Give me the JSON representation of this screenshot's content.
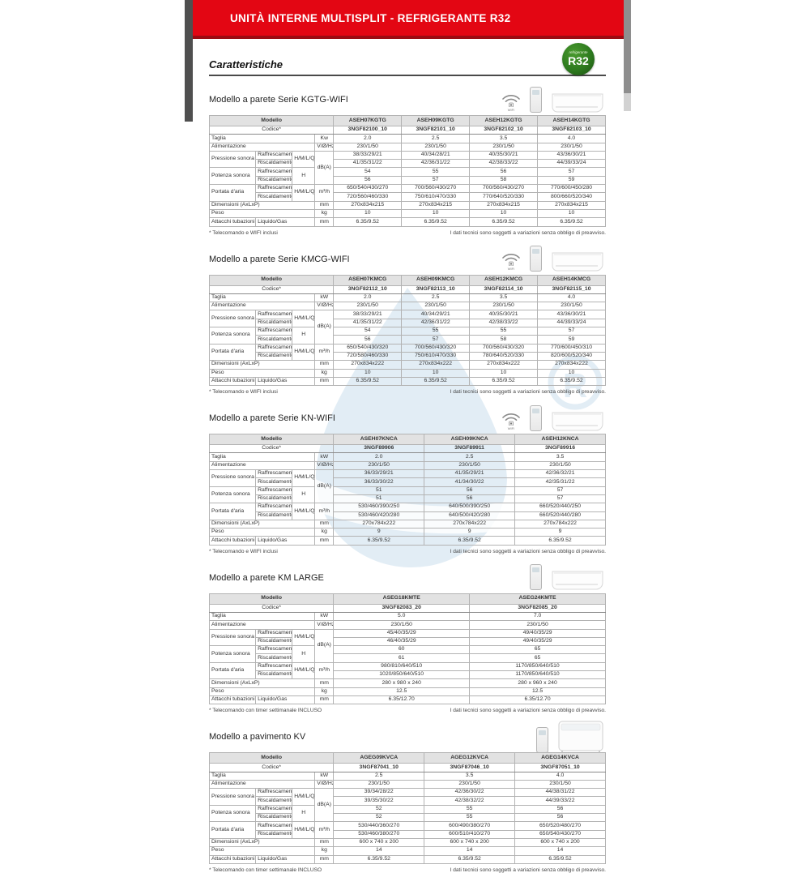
{
  "banner": {
    "title": "UNITÀ INTERNE MULTISPLIT - REFRIGERANTE R32"
  },
  "badge": {
    "small": "refrigerante",
    "big": "R32"
  },
  "page_heading": "Caratteristiche",
  "footnote_right": "I dati tecnici sono soggetti a variazioni senza obbligo di preavviso.",
  "colors": {
    "accent_red": "#e30613",
    "model_red": "#cf0a1e",
    "badge_green": "#2d7a1e"
  },
  "row_labels": {
    "modello": "Modello",
    "codice": "Codice*",
    "taglia": "Taglia",
    "alimentazione": "Alimentazione",
    "alimentazione_unit": "V/Ø/Hz",
    "pressione": "Pressione sonora",
    "potenza": "Potenza sonora",
    "portata": "Portata d'aria",
    "raffrescamento": "Raffrescamento",
    "riscaldamento": "Riscaldamento",
    "hmlq": "H/M/L/Q",
    "h": "H",
    "dba": "dB(A)",
    "m3h": "m³/h",
    "dimensioni": "Dimensioni (AxLxP)",
    "peso": "Peso",
    "attacchi": "Attacchi tubazioni",
    "liquido_gas": "Liquido/Gas",
    "mm": "mm",
    "kg": "kg"
  },
  "sections": [
    {
      "title": "Modello a parete Serie KGTG-WIFI",
      "icons": [
        "wifi",
        "remote",
        "wall-unit"
      ],
      "taglia_unit": "Kw",
      "models": [
        "ASEH07KGTG",
        "ASEH09KGTG",
        "ASEH12KGTG",
        "ASEH14KGTG"
      ],
      "codes": [
        "3NGF82100_10",
        "3NGF82101_10",
        "3NGF82102_10",
        "3NGF82103_10"
      ],
      "taglia": [
        "2.0",
        "2.5",
        "3.5",
        "4.0"
      ],
      "alimentazione": [
        "230/1/50",
        "230/1/50",
        "230/1/50",
        "230/1/50"
      ],
      "pressione_raff": [
        "38/33/29/21",
        "40/34/28/21",
        "40/35/30/21",
        "43/36/30/21"
      ],
      "pressione_risc": [
        "41/35/31/22",
        "42/36/31/22",
        "42/38/33/22",
        "44/39/33/24"
      ],
      "potenza_raff": [
        "54",
        "55",
        "56",
        "57"
      ],
      "potenza_risc": [
        "56",
        "57",
        "58",
        "59"
      ],
      "portata_raff": [
        "650/540/430/270",
        "700/560/430/270",
        "700/560/430/270",
        "770/600/450/280"
      ],
      "portata_risc": [
        "720/560/460/330",
        "750/610/470/330",
        "770/640/520/330",
        "800/660/520/340"
      ],
      "dimensioni": [
        "270x834x215",
        "270x834x215",
        "270x834x215",
        "270x834x215"
      ],
      "peso": [
        "10",
        "10",
        "10",
        "10"
      ],
      "attacchi": [
        "6.35/9.52",
        "6.35/9.52",
        "6.35/9.52",
        "6.35/9.52"
      ],
      "footnote_left": "* Telecomando e WIFI inclusi"
    },
    {
      "title": "Modello a parete Serie KMCG-WIFI",
      "icons": [
        "wifi",
        "remote",
        "wall-unit"
      ],
      "taglia_unit": "kW",
      "models": [
        "ASEH07KMCG",
        "ASEH09KMCG",
        "ASEH12KMCG",
        "ASEH14KMCG"
      ],
      "codes": [
        "3NGF82112_10",
        "3NGF82113_10",
        "3NGF82114_10",
        "3NGF82115_10"
      ],
      "taglia": [
        "2.0",
        "2.5",
        "3.5",
        "4.0"
      ],
      "alimentazione": [
        "230/1/50",
        "230/1/50",
        "230/1/50",
        "230/1/50"
      ],
      "pressione_raff": [
        "38/33/29/21",
        "40/34/29/21",
        "40/35/30/21",
        "43/36/30/21"
      ],
      "pressione_risc": [
        "41/35/31/22",
        "42/36/31/22",
        "42/38/33/22",
        "44/39/33/24"
      ],
      "potenza_raff": [
        "54",
        "55",
        "55",
        "57"
      ],
      "potenza_risc": [
        "56",
        "57",
        "58",
        "59"
      ],
      "portata_raff": [
        "650/540/430/320",
        "700/560/430/320",
        "700/560/430/320",
        "770/600/450/310"
      ],
      "portata_risc": [
        "720/580/460/330",
        "750/610/470/330",
        "780/640/520/330",
        "820/600/520/340"
      ],
      "dimensioni": [
        "270x834x222",
        "270x834x222",
        "270x834x222",
        "270x834x222"
      ],
      "peso": [
        "10",
        "10",
        "10",
        "10"
      ],
      "attacchi": [
        "6.35/9.52",
        "6.35/9.52",
        "6.35/9.52",
        "6.35/9.52"
      ],
      "footnote_left": "* Telecomando e WIFI inclusi"
    },
    {
      "title": "Modello a parete Serie KN-WIFI",
      "icons": [
        "wifi",
        "remote",
        "wall-unit"
      ],
      "taglia_unit": "kW",
      "models": [
        "ASEH07KNCA",
        "ASEH09KNCA",
        "ASEH12KNCA"
      ],
      "codes": [
        "3NGF89906",
        "3NGF89911",
        "3NGF89916"
      ],
      "taglia": [
        "2.0",
        "2.5",
        "3.5"
      ],
      "alimentazione": [
        "230/1/50",
        "230/1/50",
        "230/1/50"
      ],
      "pressione_raff": [
        "36/33/29/21",
        "41/35/29/21",
        "42/36/32/21"
      ],
      "pressione_risc": [
        "36/33/30/22",
        "41/34/30/22",
        "42/35/31/22"
      ],
      "potenza_raff": [
        "51",
        "56",
        "57"
      ],
      "potenza_risc": [
        "51",
        "56",
        "57"
      ],
      "portata_raff": [
        "530/460/390/250",
        "640/500/390/250",
        "660/520/440/250"
      ],
      "portata_risc": [
        "530/460/420/280",
        "640/500/420/280",
        "660/520/440/280"
      ],
      "dimensioni": [
        "270x784x222",
        "270x784x222",
        "270x784x222"
      ],
      "peso": [
        "9",
        "9",
        "9"
      ],
      "attacchi": [
        "6.35/9.52",
        "6.35/9.52",
        "6.35/9.52"
      ],
      "footnote_left": "* Telecomando e WIFI inclusi"
    },
    {
      "title": "Modello a parete KM LARGE",
      "icons": [
        "remote",
        "wall-unit"
      ],
      "taglia_unit": "kW",
      "models": [
        "ASEG18KMTE",
        "ASEG24KMTE"
      ],
      "codes": [
        "3NGF82083_20",
        "3NGF82085_20"
      ],
      "taglia": [
        "5.0",
        "7.0"
      ],
      "alimentazione": [
        "230/1/50",
        "230/1/50"
      ],
      "pressione_raff": [
        "45/40/35/29",
        "49/40/35/29"
      ],
      "pressione_risc": [
        "46/40/35/29",
        "49/40/35/29"
      ],
      "potenza_raff": [
        "60",
        "65"
      ],
      "potenza_risc": [
        "61",
        "65"
      ],
      "portata_raff": [
        "980/810/640/510",
        "1170/850/640/510"
      ],
      "portata_risc": [
        "1020/850/640/510",
        "1170/850/640/510"
      ],
      "dimensioni": [
        "280 x 980 x 240",
        "280 x 960 x 240"
      ],
      "peso": [
        "12.5",
        "12.5"
      ],
      "attacchi": [
        "6.35/12.70",
        "6.35/12.70"
      ],
      "footnote_left": "* Telecomando con timer settimanale INCLUSO"
    },
    {
      "title": "Modello a pavimento KV",
      "icons": [
        "remote",
        "floor-unit"
      ],
      "taglia_unit": "kW",
      "models": [
        "AGEG09KVCA",
        "AGEG12KVCA",
        "AGEG14KVCA"
      ],
      "codes": [
        "3NGF87041_10",
        "3NGF87046_10",
        "3NGF87051_10"
      ],
      "taglia": [
        "2.5",
        "3.5",
        "4.0"
      ],
      "alimentazione": [
        "230/1/50",
        "230/1/50",
        "230/1/50"
      ],
      "pressione_raff": [
        "39/34/28/22",
        "42/36/30/22",
        "44/38/31/22"
      ],
      "pressione_risc": [
        "39/35/30/22",
        "42/38/32/22",
        "44/39/33/22"
      ],
      "potenza_raff": [
        "52",
        "55",
        "56"
      ],
      "potenza_risc": [
        "52",
        "55",
        "56"
      ],
      "portata_raff": [
        "530/440/360/270",
        "600/490/380/270",
        "650/520/480/270"
      ],
      "portata_risc": [
        "530/460/380/270",
        "600/510/410/270",
        "650/540/430/270"
      ],
      "dimensioni": [
        "600 x 740 x 200",
        "600 x 740 x 200",
        "600 x 740 x 200"
      ],
      "peso": [
        "14",
        "14",
        "14"
      ],
      "attacchi": [
        "6.35/9.52",
        "6.35/9.52",
        "6.35/9.52"
      ],
      "footnote_left": "* Telecomando con timer settimanale INCLUSO"
    }
  ]
}
